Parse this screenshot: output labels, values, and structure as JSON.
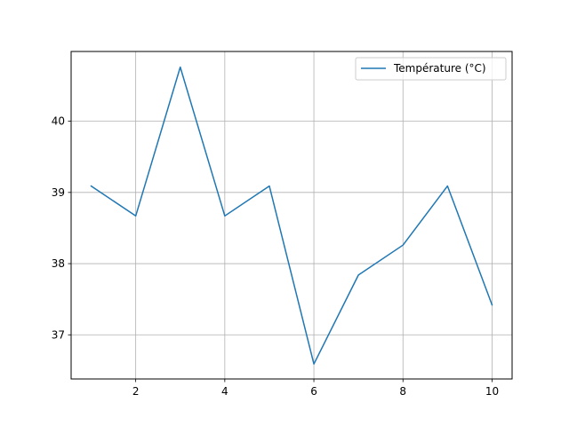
{
  "chart_data": {
    "type": "line",
    "title": "",
    "xlabel": "",
    "ylabel": "",
    "xlim": [
      0.55,
      10.45
    ],
    "ylim": [
      36.38,
      40.98
    ],
    "xticks": [
      2,
      4,
      6,
      8,
      10
    ],
    "yticks": [
      37,
      38,
      39,
      40
    ],
    "grid": true,
    "legend_position": "upper right",
    "series": [
      {
        "name": "Température (°C)",
        "color": "#1f77b4",
        "x": [
          1,
          2,
          3,
          4,
          5,
          6,
          7,
          8,
          9,
          10
        ],
        "y": [
          39.09,
          38.67,
          40.76,
          38.67,
          39.09,
          36.59,
          37.84,
          38.26,
          39.09,
          37.42
        ]
      }
    ]
  }
}
